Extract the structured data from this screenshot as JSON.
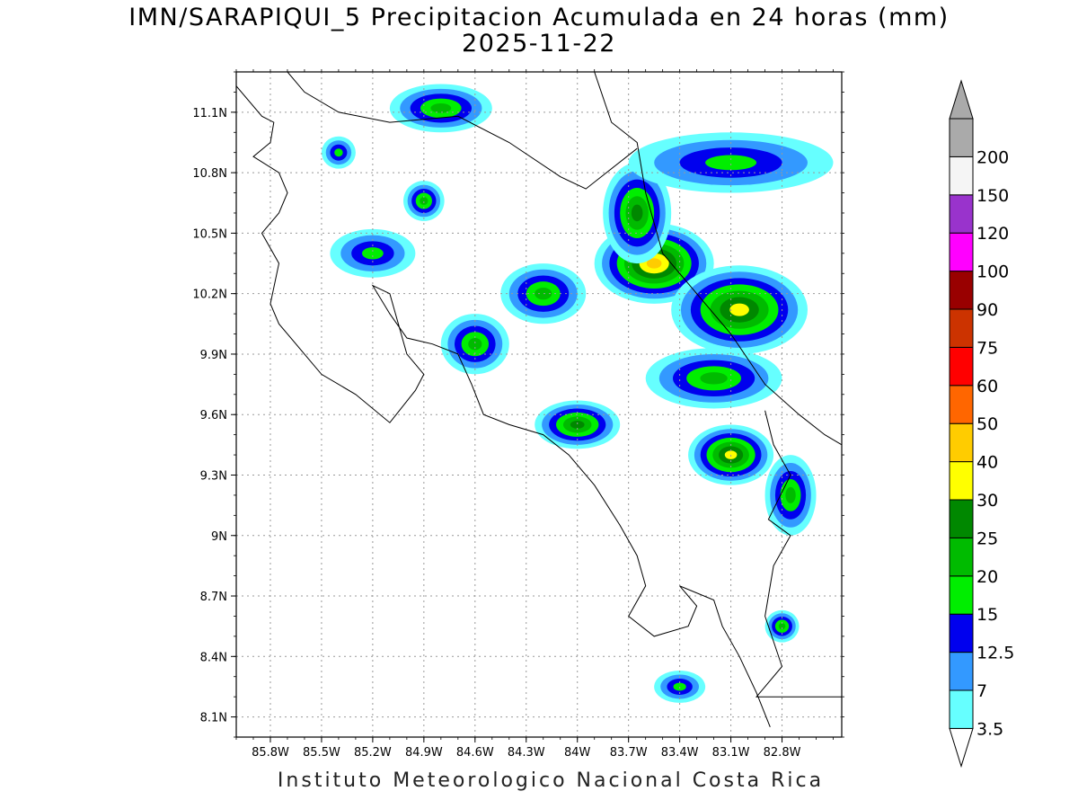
{
  "title": {
    "line1": "IMN/SARAPIQUI_5 Precipitacion Acumulada en 24 horas (mm)",
    "line2": "2025-11-22"
  },
  "footer": "Instituto Meteorologico Nacional Costa Rica",
  "map": {
    "lon_range": [
      -86.0,
      -82.45
    ],
    "lat_range": [
      8.0,
      11.3
    ],
    "lon_ticks": [
      {
        "value": -85.8,
        "label": "85.8W"
      },
      {
        "value": -85.5,
        "label": "85.5W"
      },
      {
        "value": -85.2,
        "label": "85.2W"
      },
      {
        "value": -84.9,
        "label": "84.9W"
      },
      {
        "value": -84.6,
        "label": "84.6W"
      },
      {
        "value": -84.3,
        "label": "84.3W"
      },
      {
        "value": -84.0,
        "label": "84W"
      },
      {
        "value": -83.7,
        "label": "83.7W"
      },
      {
        "value": -83.4,
        "label": "83.4W"
      },
      {
        "value": -83.1,
        "label": "83.1W"
      },
      {
        "value": -82.8,
        "label": "82.8W"
      }
    ],
    "lat_ticks": [
      {
        "value": 8.1,
        "label": "8.1N"
      },
      {
        "value": 8.4,
        "label": "8.4N"
      },
      {
        "value": 8.7,
        "label": "8.7N"
      },
      {
        "value": 9.0,
        "label": "9N"
      },
      {
        "value": 9.3,
        "label": "9.3N"
      },
      {
        "value": 9.6,
        "label": "9.6N"
      },
      {
        "value": 9.9,
        "label": "9.9N"
      },
      {
        "value": 10.2,
        "label": "10.2N"
      },
      {
        "value": 10.5,
        "label": "10.5N"
      },
      {
        "value": 10.8,
        "label": "10.8N"
      },
      {
        "value": 11.1,
        "label": "11.1N"
      }
    ],
    "coastline": [
      [
        -86.0,
        11.23
      ],
      [
        -85.85,
        11.08
      ],
      [
        -85.78,
        11.05
      ],
      [
        -85.8,
        10.95
      ],
      [
        -85.9,
        10.88
      ],
      [
        -85.75,
        10.8
      ],
      [
        -85.7,
        10.7
      ],
      [
        -85.75,
        10.6
      ],
      [
        -85.85,
        10.5
      ],
      [
        -85.75,
        10.35
      ],
      [
        -85.8,
        10.15
      ],
      [
        -85.75,
        10.05
      ],
      [
        -85.6,
        9.9
      ],
      [
        -85.5,
        9.8
      ],
      [
        -85.3,
        9.7
      ],
      [
        -85.1,
        9.56
      ],
      [
        -84.95,
        9.72
      ],
      [
        -84.9,
        9.8
      ],
      [
        -84.95,
        9.85
      ],
      [
        -85.0,
        9.9
      ],
      [
        -85.05,
        10.05
      ],
      [
        -85.1,
        10.2
      ],
      [
        -85.2,
        10.24
      ],
      [
        -85.1,
        10.1
      ],
      [
        -85.0,
        9.98
      ],
      [
        -84.85,
        9.95
      ],
      [
        -84.7,
        9.9
      ],
      [
        -84.62,
        9.75
      ],
      [
        -84.55,
        9.6
      ],
      [
        -84.4,
        9.55
      ],
      [
        -84.2,
        9.5
      ],
      [
        -84.05,
        9.4
      ],
      [
        -83.9,
        9.25
      ],
      [
        -83.75,
        9.05
      ],
      [
        -83.65,
        8.9
      ],
      [
        -83.6,
        8.75
      ],
      [
        -83.7,
        8.6
      ],
      [
        -83.55,
        8.5
      ],
      [
        -83.35,
        8.55
      ],
      [
        -83.3,
        8.65
      ],
      [
        -83.4,
        8.75
      ],
      [
        -83.2,
        8.68
      ],
      [
        -83.15,
        8.55
      ],
      [
        -83.05,
        8.4
      ],
      [
        -82.95,
        8.22
      ],
      [
        -82.87,
        8.05
      ]
    ],
    "caribbean_coast": [
      [
        -83.9,
        11.3
      ],
      [
        -83.8,
        11.05
      ],
      [
        -83.65,
        10.95
      ],
      [
        -83.6,
        10.7
      ],
      [
        -83.5,
        10.4
      ],
      [
        -83.3,
        10.2
      ],
      [
        -83.1,
        10.0
      ],
      [
        -82.9,
        9.75
      ],
      [
        -82.7,
        9.6
      ],
      [
        -82.55,
        9.5
      ],
      [
        -82.45,
        9.45
      ]
    ],
    "north_border": [
      [
        -85.7,
        11.3
      ],
      [
        -85.6,
        11.2
      ],
      [
        -85.4,
        11.1
      ],
      [
        -85.1,
        11.05
      ],
      [
        -84.7,
        11.08
      ],
      [
        -84.4,
        10.95
      ],
      [
        -84.1,
        10.78
      ],
      [
        -83.95,
        10.72
      ],
      [
        -83.65,
        10.92
      ]
    ],
    "south_border": [
      [
        -82.9,
        9.62
      ],
      [
        -82.85,
        9.45
      ],
      [
        -82.75,
        9.3
      ],
      [
        -82.88,
        9.08
      ],
      [
        -82.75,
        9.0
      ],
      [
        -82.85,
        8.85
      ],
      [
        -82.9,
        8.6
      ],
      [
        -82.8,
        8.35
      ],
      [
        -82.95,
        8.2
      ],
      [
        -82.45,
        8.2
      ]
    ]
  },
  "precip_blobs": [
    {
      "lon": -83.55,
      "lat": 10.35,
      "rx": 0.35,
      "ry": 0.2,
      "level": 5
    },
    {
      "lon": -83.05,
      "lat": 10.12,
      "rx": 0.4,
      "ry": 0.22,
      "level": 4
    },
    {
      "lon": -83.65,
      "lat": 10.6,
      "rx": 0.2,
      "ry": 0.25,
      "level": 3
    },
    {
      "lon": -83.1,
      "lat": 9.4,
      "rx": 0.25,
      "ry": 0.15,
      "level": 4
    },
    {
      "lon": -84.0,
      "lat": 9.55,
      "rx": 0.25,
      "ry": 0.12,
      "level": 3
    },
    {
      "lon": -84.8,
      "lat": 11.12,
      "rx": 0.3,
      "ry": 0.12,
      "level": 2
    },
    {
      "lon": -84.9,
      "lat": 10.66,
      "rx": 0.12,
      "ry": 0.1,
      "level": 2
    },
    {
      "lon": -84.6,
      "lat": 9.95,
      "rx": 0.2,
      "ry": 0.15,
      "level": 2
    },
    {
      "lon": -83.2,
      "lat": 9.78,
      "rx": 0.4,
      "ry": 0.15,
      "level": 2
    },
    {
      "lon": -84.2,
      "lat": 10.2,
      "rx": 0.25,
      "ry": 0.15,
      "level": 2
    },
    {
      "lon": -82.75,
      "lat": 9.2,
      "rx": 0.15,
      "ry": 0.2,
      "level": 2
    },
    {
      "lon": -82.8,
      "lat": 8.55,
      "rx": 0.1,
      "ry": 0.08,
      "level": 2
    },
    {
      "lon": -83.1,
      "lat": 10.85,
      "rx": 0.6,
      "ry": 0.15,
      "level": 1
    },
    {
      "lon": -85.2,
      "lat": 10.4,
      "rx": 0.25,
      "ry": 0.12,
      "level": 1
    },
    {
      "lon": -83.4,
      "lat": 8.25,
      "rx": 0.15,
      "ry": 0.08,
      "level": 1
    },
    {
      "lon": -85.4,
      "lat": 10.9,
      "rx": 0.1,
      "ry": 0.08,
      "level": 1
    }
  ],
  "colorbar": {
    "colors": [
      "#66ffff",
      "#3399ff",
      "#0000ee",
      "#00ee00",
      "#00bb00",
      "#008800",
      "#ffff00",
      "#ffcc00",
      "#ff6600",
      "#ff0000",
      "#cc3300",
      "#990000",
      "#ff00ff",
      "#9933cc",
      "#f5f5f5",
      "#aaaaaa"
    ],
    "labels": [
      "3.5",
      "7",
      "12.5",
      "15",
      "20",
      "25",
      "30",
      "40",
      "50",
      "60",
      "75",
      "90",
      "100",
      "120",
      "150",
      "200"
    ]
  }
}
